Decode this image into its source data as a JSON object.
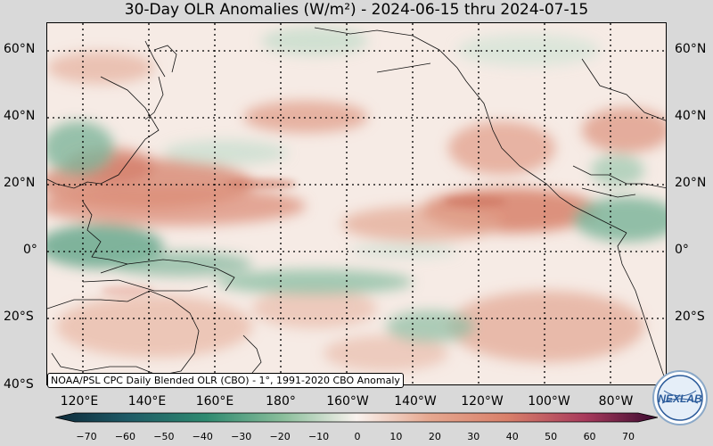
{
  "title": "30-Day OLR Anomalies (W/m²) - 2024-06-15 thru 2024-07-15",
  "lat_labels": [
    "60°N",
    "40°N",
    "20°N",
    "0°",
    "20°S",
    "40°S"
  ],
  "lon_labels": [
    "120°E",
    "140°E",
    "160°E",
    "180°",
    "160°W",
    "140°W",
    "120°W",
    "100°W",
    "80°W"
  ],
  "credit": "NOAA/PSL CPC Daily Blended OLR (CBO) - 1°, 1991-2020 CBO Anomaly",
  "colorbar": {
    "ticks": [
      "−70",
      "−60",
      "−50",
      "−40",
      "−30",
      "−20",
      "−10",
      "0",
      "10",
      "20",
      "30",
      "40",
      "50",
      "60",
      "70"
    ],
    "range": [
      -70,
      70
    ],
    "colors": {
      "min": "#0d2a3a",
      "neg_mid": "#2e8a70",
      "zero": "#f9f2ee",
      "pos_mid": "#d9806a",
      "max": "#3a0a30"
    }
  },
  "map": {
    "lat_range": [
      "40°S",
      "66°N"
    ],
    "lon_range": [
      "107°E",
      "73°W"
    ],
    "grid": "dotted every 20°"
  },
  "logo": "NEXLAB"
}
